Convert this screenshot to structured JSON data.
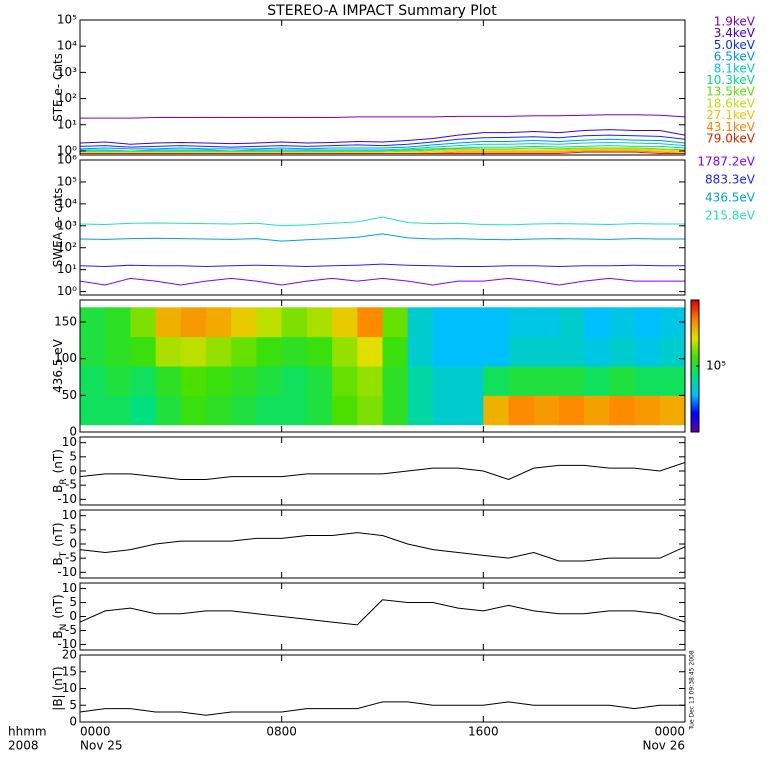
{
  "title": "STEREO-A IMPACT Summary Plot",
  "stamp": "Tue Dec 13 09:38:45 2008",
  "x_axis": {
    "xlim": [
      0,
      24
    ],
    "xticks": [
      {
        "value": 0,
        "label": "0000"
      },
      {
        "value": 8,
        "label": "0800"
      },
      {
        "value": 16,
        "label": "1600"
      },
      {
        "value": 24,
        "label": "0000"
      }
    ],
    "date_labels": [
      {
        "value": 0,
        "label": "Nov 25"
      },
      {
        "value": 24,
        "label": "Nov 26"
      }
    ],
    "corner_labels": [
      "hhmm",
      "2008"
    ]
  },
  "chart_data": [
    {
      "type": "line",
      "ylabel": "STE e- Cnts",
      "ylog": true,
      "ylim": [
        0.7,
        100000
      ],
      "yticks": [
        {
          "value": 1,
          "label": "10⁰"
        },
        {
          "value": 10,
          "label": "10¹"
        },
        {
          "value": 100,
          "label": "10²"
        },
        {
          "value": 1000,
          "label": "10³"
        },
        {
          "value": 10000,
          "label": "10⁴"
        },
        {
          "value": 100000,
          "label": "10⁵"
        }
      ],
      "x": [
        0,
        1,
        2,
        3,
        4,
        5,
        6,
        7,
        8,
        9,
        10,
        11,
        12,
        13,
        14,
        15,
        16,
        17,
        18,
        19,
        20,
        21,
        22,
        23,
        24
      ],
      "series": [
        {
          "name": "1.9keV",
          "color": "#8000c0",
          "values": [
            18,
            18,
            18,
            19,
            19,
            19,
            19,
            19,
            19,
            19,
            19,
            20,
            20,
            20,
            20,
            21,
            21,
            21,
            22,
            22,
            23,
            24,
            24,
            23,
            20
          ]
        },
        {
          "name": "3.4keV",
          "color": "#4000e0",
          "values": [
            2,
            2.2,
            1.8,
            2,
            2.1,
            2,
            1.9,
            2,
            2.2,
            2,
            2.1,
            2.3,
            2.2,
            2.5,
            3,
            4,
            5,
            5,
            5.5,
            5,
            6,
            6.5,
            6,
            6,
            4
          ]
        },
        {
          "name": "5.0keV",
          "color": "#0030ff",
          "values": [
            1.5,
            1.6,
            1.4,
            1.5,
            1.6,
            1.5,
            1.4,
            1.5,
            1.6,
            1.5,
            1.6,
            1.7,
            1.6,
            1.8,
            2.2,
            2.8,
            3.2,
            3.3,
            3.5,
            3.2,
            3.8,
            4,
            3.8,
            3.6,
            2.8
          ]
        },
        {
          "name": "6.5keV",
          "color": "#0090ff",
          "values": [
            1.2,
            1.3,
            1.2,
            1.2,
            1.3,
            1.2,
            1.2,
            1.2,
            1.3,
            1.2,
            1.3,
            1.3,
            1.3,
            1.4,
            1.7,
            2,
            2.3,
            2.3,
            2.5,
            2.3,
            2.6,
            2.8,
            2.6,
            2.5,
            2
          ]
        },
        {
          "name": "8.1keV",
          "color": "#00c8e0",
          "values": [
            1.1,
            1.1,
            1,
            1.1,
            1.1,
            1.1,
            1,
            1.1,
            1.1,
            1.1,
            1.1,
            1.1,
            1.1,
            1.2,
            1.4,
            1.6,
            1.8,
            1.8,
            1.9,
            1.8,
            2,
            2.1,
            2,
            1.9,
            1.6
          ]
        },
        {
          "name": "10.3keV",
          "color": "#00e080",
          "values": [
            1,
            1,
            1,
            1,
            1,
            1,
            1,
            1,
            1,
            1,
            1,
            1,
            1,
            1.1,
            1.2,
            1.3,
            1.4,
            1.4,
            1.5,
            1.4,
            1.5,
            1.6,
            1.5,
            1.5,
            1.3
          ]
        },
        {
          "name": "13.5keV",
          "color": "#60e000",
          "values": [
            0.9,
            0.9,
            0.9,
            0.9,
            0.9,
            0.9,
            0.9,
            0.9,
            0.9,
            0.9,
            0.9,
            0.9,
            0.9,
            1,
            1.1,
            1.2,
            1.2,
            1.2,
            1.3,
            1.2,
            1.3,
            1.3,
            1.3,
            1.2,
            1.1
          ]
        },
        {
          "name": "18.6keV",
          "color": "#c0e000",
          "values": [
            0.9,
            0.9,
            0.9,
            0.9,
            0.9,
            0.9,
            0.9,
            0.9,
            0.9,
            0.9,
            0.9,
            0.9,
            0.9,
            0.9,
            1,
            1.1,
            1.1,
            1.1,
            1.1,
            1.1,
            1.2,
            1.2,
            1.2,
            1.1,
            1
          ]
        },
        {
          "name": "27.1keV",
          "color": "#ffc000",
          "values": [
            0.8,
            0.8,
            0.8,
            0.8,
            0.8,
            0.8,
            0.8,
            0.8,
            0.8,
            0.8,
            0.8,
            0.8,
            0.8,
            0.8,
            0.9,
            1,
            1,
            1,
            1,
            1,
            1.1,
            1.1,
            1.1,
            1,
            0.9
          ]
        },
        {
          "name": "43.1keV",
          "color": "#ff8000",
          "values": [
            0.8,
            0.8,
            0.8,
            0.8,
            0.8,
            0.8,
            0.8,
            0.8,
            0.8,
            0.8,
            0.8,
            0.8,
            0.8,
            0.8,
            0.8,
            0.9,
            0.9,
            0.9,
            0.9,
            0.9,
            1,
            1,
            1,
            0.9,
            0.8
          ]
        },
        {
          "name": "79.0keV",
          "color": "#e02000",
          "values": [
            0.8,
            0.8,
            0.8,
            0.8,
            0.8,
            0.8,
            0.8,
            0.8,
            0.8,
            0.8,
            0.8,
            0.8,
            0.8,
            0.8,
            0.8,
            0.8,
            0.8,
            0.8,
            0.8,
            0.8,
            0.9,
            0.9,
            0.9,
            0.8,
            0.8
          ]
        }
      ]
    },
    {
      "type": "line",
      "ylabel": "SWEA e- cnts",
      "ylog": true,
      "ylim": [
        0.7,
        1000000
      ],
      "yticks": [
        {
          "value": 1,
          "label": "10⁰"
        },
        {
          "value": 10,
          "label": "10¹"
        },
        {
          "value": 100,
          "label": "10²"
        },
        {
          "value": 1000,
          "label": "10³"
        },
        {
          "value": 10000,
          "label": "10⁴"
        },
        {
          "value": 100000,
          "label": "10⁵"
        },
        {
          "value": 1000000,
          "label": "10⁶"
        }
      ],
      "x": [
        0,
        1,
        2,
        3,
        4,
        5,
        6,
        7,
        8,
        9,
        10,
        11,
        12,
        13,
        14,
        15,
        16,
        17,
        18,
        19,
        20,
        21,
        22,
        23,
        24
      ],
      "series": [
        {
          "name": "1787.2eV",
          "color": "#8000ff",
          "values": [
            3,
            2,
            4,
            3,
            2,
            3,
            4,
            3,
            2,
            3,
            4,
            3,
            4,
            3,
            2,
            3,
            3,
            4,
            3,
            2,
            3,
            4,
            3,
            3,
            3
          ]
        },
        {
          "name": "883.3eV",
          "color": "#2020ff",
          "values": [
            15,
            14,
            16,
            15,
            15,
            14,
            15,
            16,
            15,
            14,
            15,
            16,
            18,
            16,
            15,
            14,
            14,
            15,
            15,
            14,
            15,
            15,
            16,
            15,
            15
          ]
        },
        {
          "name": "436.5eV",
          "color": "#00a0e0",
          "values": [
            250,
            240,
            260,
            270,
            260,
            250,
            240,
            260,
            200,
            230,
            260,
            300,
            430,
            280,
            250,
            260,
            240,
            230,
            250,
            260,
            250,
            240,
            260,
            250,
            250
          ]
        },
        {
          "name": "215.8eV",
          "color": "#20e0c0",
          "values": [
            1200,
            1150,
            1300,
            1350,
            1300,
            1250,
            1200,
            1300,
            1000,
            1100,
            1300,
            1500,
            2500,
            1400,
            1250,
            1300,
            1150,
            1100,
            1200,
            1250,
            1200,
            1150,
            1250,
            1200,
            1200
          ]
        }
      ]
    },
    {
      "type": "heatmap",
      "ylabel": "436.5 eV",
      "ylim": [
        0,
        180
      ],
      "yticks": [
        0,
        50,
        100,
        150
      ],
      "x_bins": [
        0,
        1,
        2,
        3,
        4,
        5,
        6,
        7,
        8,
        9,
        10,
        11,
        12,
        13,
        14,
        15,
        16,
        17,
        18,
        19,
        20,
        21,
        22,
        23,
        24
      ],
      "y_bins": [
        10,
        50,
        90,
        130,
        170
      ],
      "clim": [
        20000,
        500000
      ],
      "clog": true,
      "colormap": [
        "#6000a0",
        "#0000ff",
        "#00c0ff",
        "#00e080",
        "#40e000",
        "#e0e000",
        "#ff8000",
        "#e00000"
      ],
      "cticks": [
        {
          "value": 100000,
          "label": "10⁵"
        }
      ],
      "values": [
        [
          90000,
          90000,
          80000,
          100000,
          120000,
          110000,
          100000,
          90000,
          90000,
          100000,
          130000,
          150000,
          110000,
          70000,
          60000,
          60000,
          250000,
          300000,
          280000,
          300000,
          270000,
          300000,
          280000,
          260000
        ],
        [
          90000,
          100000,
          90000,
          110000,
          130000,
          120000,
          110000,
          100000,
          90000,
          100000,
          140000,
          160000,
          110000,
          70000,
          60000,
          60000,
          90000,
          100000,
          100000,
          100000,
          90000,
          100000,
          90000,
          90000
        ],
        [
          100000,
          110000,
          120000,
          170000,
          180000,
          160000,
          140000,
          120000,
          110000,
          120000,
          160000,
          200000,
          120000,
          60000,
          50000,
          50000,
          50000,
          60000,
          60000,
          60000,
          55000,
          60000,
          55000,
          60000
        ],
        [
          100000,
          110000,
          150000,
          250000,
          280000,
          260000,
          220000,
          180000,
          150000,
          170000,
          220000,
          300000,
          140000,
          60000,
          50000,
          50000,
          50000,
          55000,
          55000,
          60000,
          50000,
          55000,
          50000,
          55000
        ]
      ]
    },
    {
      "type": "line",
      "ylabel": "B",
      "ylabel_sub": "R",
      "ylabel_unit": "(nT)",
      "ylim": [
        -12,
        12
      ],
      "yticks": [
        -10,
        -5,
        0,
        5,
        10
      ],
      "x": [
        0,
        1,
        2,
        3,
        4,
        5,
        6,
        7,
        8,
        9,
        10,
        11,
        12,
        13,
        14,
        15,
        16,
        17,
        18,
        19,
        20,
        21,
        22,
        23,
        24
      ],
      "series": [
        {
          "color": "#000000",
          "values": [
            -2,
            -1,
            -1,
            -2,
            -3,
            -3,
            -2,
            -2,
            -2,
            -1,
            -1,
            -1,
            -1,
            0,
            1,
            1,
            0,
            -3,
            1,
            2,
            2,
            1,
            1,
            0,
            3
          ]
        }
      ]
    },
    {
      "type": "line",
      "ylabel": "B",
      "ylabel_sub": "T",
      "ylabel_unit": "(nT)",
      "ylim": [
        -12,
        12
      ],
      "yticks": [
        -10,
        -5,
        0,
        5,
        10
      ],
      "x": [
        0,
        1,
        2,
        3,
        4,
        5,
        6,
        7,
        8,
        9,
        10,
        11,
        12,
        13,
        14,
        15,
        16,
        17,
        18,
        19,
        20,
        21,
        22,
        23,
        24
      ],
      "series": [
        {
          "color": "#000000",
          "values": [
            -2,
            -3,
            -2,
            0,
            1,
            1,
            1,
            2,
            2,
            3,
            3,
            4,
            3,
            0,
            -2,
            -3,
            -4,
            -5,
            -3,
            -6,
            -6,
            -5,
            -5,
            -5,
            -1
          ]
        }
      ]
    },
    {
      "type": "line",
      "ylabel": "B",
      "ylabel_sub": "N",
      "ylabel_unit": "(nT)",
      "ylim": [
        -12,
        12
      ],
      "yticks": [
        -10,
        -5,
        0,
        5,
        10
      ],
      "x": [
        0,
        1,
        2,
        3,
        4,
        5,
        6,
        7,
        8,
        9,
        10,
        11,
        12,
        13,
        14,
        15,
        16,
        17,
        18,
        19,
        20,
        21,
        22,
        23,
        24
      ],
      "series": [
        {
          "color": "#000000",
          "values": [
            -2,
            2,
            3,
            1,
            1,
            2,
            2,
            1,
            0,
            -1,
            -2,
            -3,
            6,
            5,
            5,
            3,
            2,
            4,
            2,
            1,
            1,
            2,
            2,
            1,
            -2
          ]
        }
      ]
    },
    {
      "type": "line",
      "ylabel": "|B| (nT)",
      "ylim": [
        0,
        20
      ],
      "yticks": [
        0,
        5,
        10,
        15,
        20
      ],
      "x": [
        0,
        1,
        2,
        3,
        4,
        5,
        6,
        7,
        8,
        9,
        10,
        11,
        12,
        13,
        14,
        15,
        16,
        17,
        18,
        19,
        20,
        21,
        22,
        23,
        24
      ],
      "series": [
        {
          "color": "#000000",
          "values": [
            3,
            4,
            4,
            3,
            3,
            2,
            3,
            3,
            3,
            4,
            4,
            4,
            6,
            6,
            5,
            5,
            5,
            6,
            5,
            5,
            5,
            5,
            4,
            5,
            5
          ]
        }
      ]
    }
  ]
}
